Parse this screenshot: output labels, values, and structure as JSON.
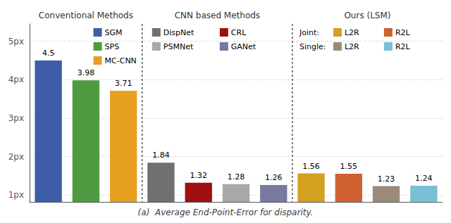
{
  "chart_data": {
    "type": "bar",
    "title": "(a)  Average End-Point-Error for disparity.",
    "sections": [
      {
        "title": "Conventional Methods",
        "items": [
          {
            "label": "SGM",
            "value": 4.5,
            "color": "#3d5ea6"
          },
          {
            "label": "SPS",
            "value": 3.98,
            "color": "#4e9a40"
          },
          {
            "label": "MC-CNN",
            "value": 3.71,
            "color": "#e8a020"
          }
        ]
      },
      {
        "title": "CNN based Methods",
        "items": [
          {
            "label": "DispNet",
            "value": 1.84,
            "color": "#707070"
          },
          {
            "label": "CRL",
            "value": 1.32,
            "color": "#a01010"
          },
          {
            "label": "PSMNet",
            "value": 1.28,
            "color": "#a8a8a8"
          },
          {
            "label": "GANet",
            "value": 1.26,
            "color": "#7878a0"
          }
        ]
      },
      {
        "title": "Ours (LSM)",
        "items": [
          {
            "group": "Joint:",
            "label": "L2R",
            "value": 1.56,
            "color": "#d4a020"
          },
          {
            "group": "Joint:",
            "label": "R2L",
            "value": 1.55,
            "color": "#d06030"
          },
          {
            "group": "Single:",
            "label": "L2R",
            "value": 1.23,
            "color": "#9a8a7a"
          },
          {
            "group": "Single:",
            "label": "R2L",
            "value": 1.24,
            "color": "#78c0d8"
          }
        ]
      }
    ],
    "ylim": [
      0.82,
      5.45
    ],
    "yticks": [
      {
        "value": 1,
        "label": "1px"
      },
      {
        "value": 2,
        "label": "2px"
      },
      {
        "value": 3,
        "label": "3px"
      },
      {
        "value": 4,
        "label": "4px"
      },
      {
        "value": 5,
        "label": "5px"
      }
    ],
    "grid": true,
    "data_labels": true,
    "tick_labels": "y"
  }
}
